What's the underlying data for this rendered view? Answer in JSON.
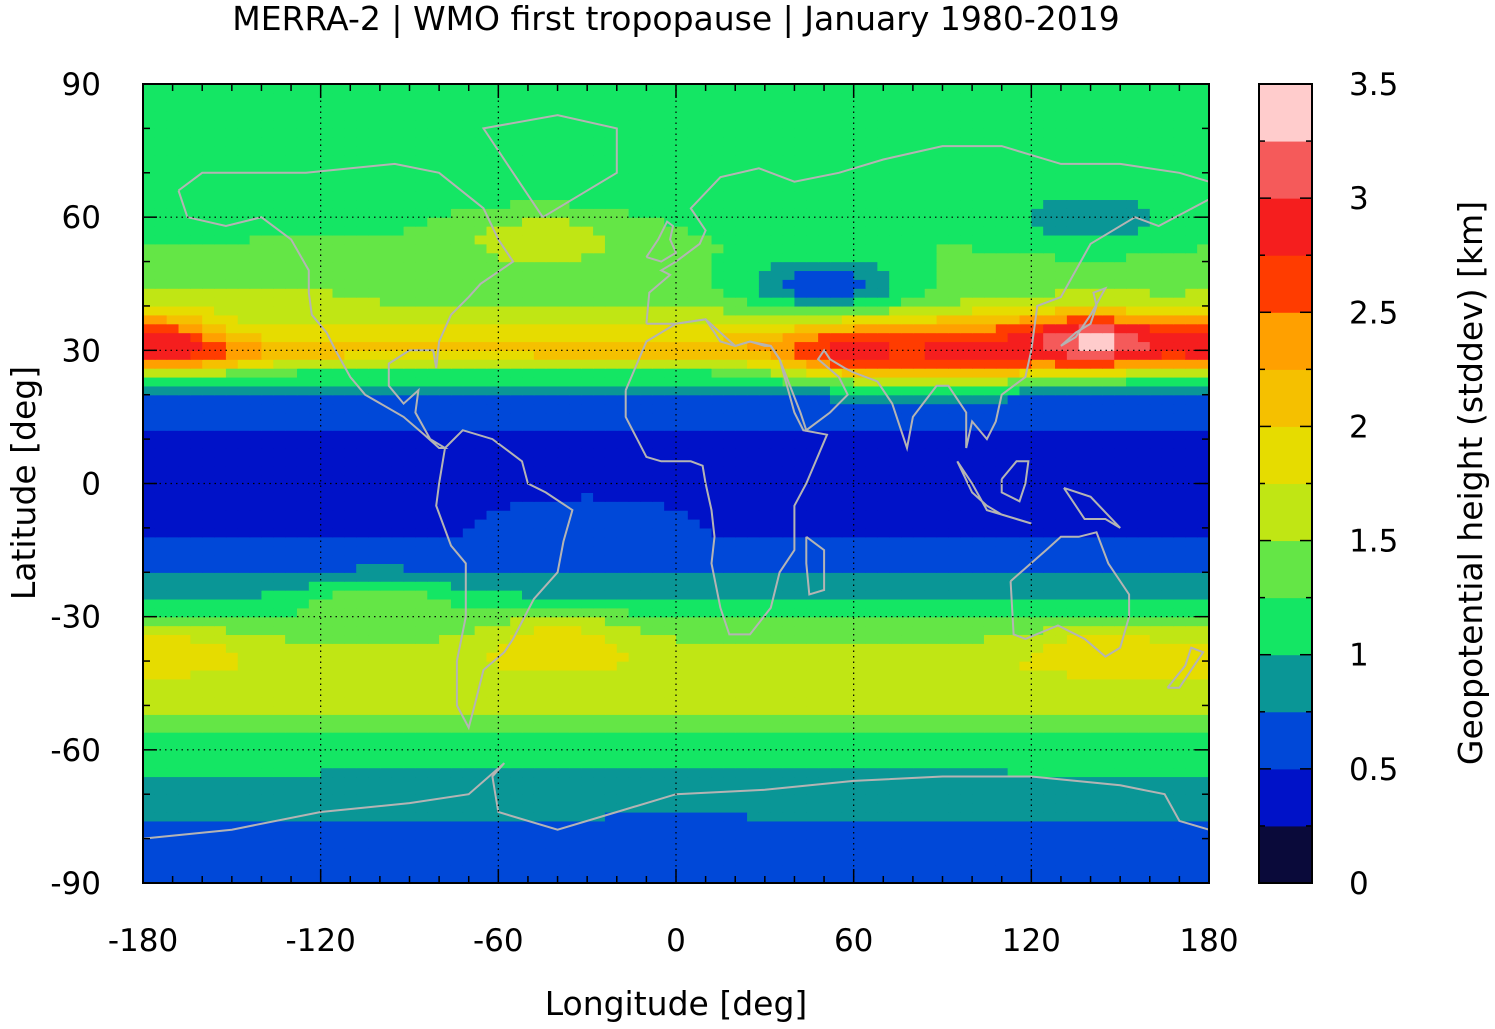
{
  "chart_data": {
    "type": "heatmap",
    "title": "MERRA-2 | WMO first tropopause | January 1980-2019",
    "xlabel": "Longitude [deg]",
    "ylabel": "Latitude [deg]",
    "colorbar_label": "Geopotential height (stddev) [km]",
    "xlim": [
      -180,
      180
    ],
    "ylim": [
      -90,
      90
    ],
    "x_ticks": [
      -180,
      -120,
      -60,
      0,
      60,
      120,
      180
    ],
    "y_ticks": [
      -90,
      -60,
      -30,
      0,
      30,
      60,
      90
    ],
    "x_tick_labels": [
      "-180",
      "-120",
      "-60",
      "0",
      "60",
      "120",
      "180"
    ],
    "y_tick_labels": [
      "-90",
      "-60",
      "-30",
      "0",
      "30",
      "60",
      "90"
    ],
    "grid": true,
    "colorbar": {
      "range": [
        0,
        3.5
      ],
      "step": 0.25,
      "ticks": [
        0,
        0.5,
        1,
        1.5,
        2,
        2.5,
        3,
        3.5
      ],
      "tick_labels": [
        "0",
        "0.5",
        "1",
        "1.5",
        "2",
        "2.5",
        "3",
        "3.5"
      ],
      "colors": [
        "#0a0a3a",
        "#0012c8",
        "#0048d8",
        "#0a9696",
        "#14e664",
        "#64e646",
        "#c0e614",
        "#e6dc00",
        "#f5c000",
        "#ffa000",
        "#ff3c00",
        "#f51e1e",
        "#f55a5a",
        "#ffcccc"
      ]
    },
    "field_lat_profile": {
      "lat": [
        -90,
        -80,
        -70,
        -60,
        -50,
        -40,
        -30,
        -20,
        -10,
        0,
        10,
        20,
        25,
        30,
        35,
        40,
        50,
        60,
        70,
        80,
        90
      ],
      "value": [
        0.6,
        0.65,
        0.9,
        1.1,
        1.55,
        1.7,
        1.2,
        0.7,
        0.45,
        0.4,
        0.45,
        0.7,
        1.2,
        2.2,
        1.8,
        1.5,
        1.3,
        1.2,
        1.1,
        1.1,
        1.1
      ]
    },
    "features": [
      {
        "lon": -170,
        "lat": 32,
        "value": 3.1
      },
      {
        "lon": 140,
        "lat": 32,
        "value": 3.4
      },
      {
        "lon": 60,
        "lat": 30,
        "value": 2.8
      },
      {
        "lon": 100,
        "lat": 30,
        "value": 2.9
      },
      {
        "lon": 50,
        "lat": 45,
        "value": 0.6
      },
      {
        "lon": 140,
        "lat": 60,
        "value": 0.85
      },
      {
        "lon": -140,
        "lat": 38,
        "value": 1.7
      },
      {
        "lon": -45,
        "lat": 55,
        "value": 1.7
      },
      {
        "lon": -40,
        "lat": -36,
        "value": 1.9
      },
      {
        "lon": 145,
        "lat": -38,
        "value": 1.9
      },
      {
        "lon": -170,
        "lat": -38,
        "value": 1.85
      },
      {
        "lon": -100,
        "lat": -28,
        "value": 1.45
      },
      {
        "lon": -30,
        "lat": -10,
        "value": 0.75
      },
      {
        "lon": 0,
        "lat": -78,
        "value": 0.7
      }
    ],
    "coastline_color": "#b4b4b4"
  }
}
